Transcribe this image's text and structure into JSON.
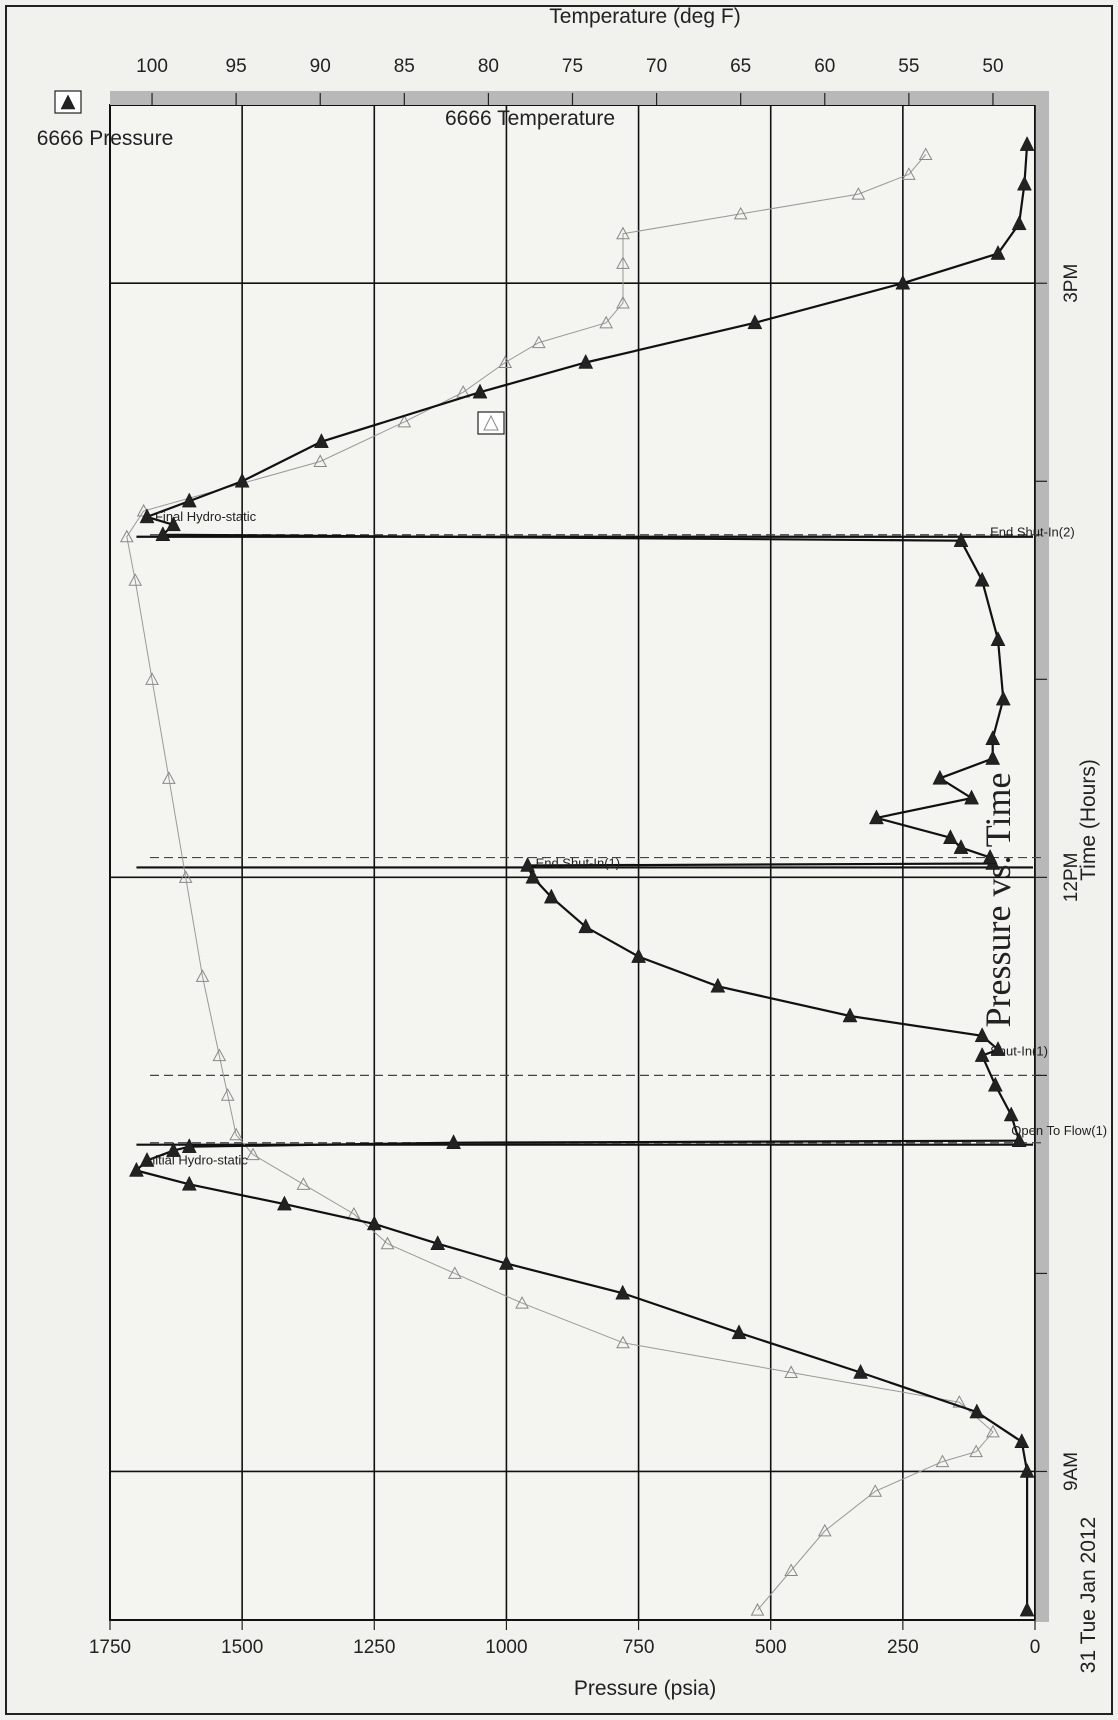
{
  "chart_data": {
    "type": "line",
    "title": "Pressure vs. Time",
    "xlabel": "Time (Hours)",
    "ylabel": "Pressure (psia)",
    "y2label": "Temperature (deg F)",
    "date_label": "31 Tue Jan 2012",
    "x_ticks": [
      "9AM",
      "12PM",
      "3PM"
    ],
    "x_tick_hours": [
      9,
      12,
      15
    ],
    "xlim": [
      8.25,
      15.9
    ],
    "ylim": [
      0,
      1750
    ],
    "y_ticks": [
      0,
      250,
      500,
      750,
      1000,
      1250,
      1500,
      1750
    ],
    "y2lim": [
      47.5,
      102.5
    ],
    "y2_ticks": [
      50,
      55,
      60,
      65,
      70,
      75,
      80,
      85,
      90,
      95,
      100
    ],
    "grid": true,
    "orientation": "rotated 90 degrees counter-clockwise (scanned page)",
    "series": [
      {
        "name": "6666 Pressure",
        "axis": "left",
        "marker": "filled-triangle",
        "points": [
          [
            8.3,
            15
          ],
          [
            9.0,
            15
          ],
          [
            9.15,
            25
          ],
          [
            9.3,
            110
          ],
          [
            9.5,
            330
          ],
          [
            9.7,
            560
          ],
          [
            9.9,
            780
          ],
          [
            10.05,
            1000
          ],
          [
            10.15,
            1130
          ],
          [
            10.25,
            1250
          ],
          [
            10.35,
            1420
          ],
          [
            10.45,
            1600
          ],
          [
            10.52,
            1700
          ],
          [
            10.57,
            1680
          ],
          [
            10.62,
            1630
          ],
          [
            10.64,
            1600
          ],
          [
            10.66,
            1100
          ],
          [
            10.67,
            30
          ],
          [
            10.8,
            45
          ],
          [
            10.95,
            75
          ],
          [
            11.1,
            100
          ],
          [
            11.13,
            70
          ],
          [
            11.2,
            100
          ],
          [
            11.3,
            350
          ],
          [
            11.45,
            600
          ],
          [
            11.6,
            750
          ],
          [
            11.75,
            850
          ],
          [
            11.9,
            915
          ],
          [
            12.0,
            950
          ],
          [
            12.06,
            960
          ],
          [
            12.07,
            80
          ],
          [
            12.1,
            85
          ],
          [
            12.15,
            140
          ],
          [
            12.2,
            160
          ],
          [
            12.3,
            300
          ],
          [
            12.4,
            120
          ],
          [
            12.5,
            180
          ],
          [
            12.6,
            80
          ],
          [
            12.7,
            80
          ],
          [
            12.9,
            60
          ],
          [
            13.2,
            70
          ],
          [
            13.5,
            100
          ],
          [
            13.7,
            140
          ],
          [
            13.73,
            1650
          ],
          [
            13.78,
            1630
          ],
          [
            13.82,
            1680
          ],
          [
            13.9,
            1600
          ],
          [
            14.0,
            1500
          ],
          [
            14.2,
            1350
          ],
          [
            14.45,
            1050
          ],
          [
            14.6,
            850
          ],
          [
            14.8,
            530
          ],
          [
            15.0,
            250
          ],
          [
            15.15,
            70
          ],
          [
            15.3,
            30
          ],
          [
            15.5,
            20
          ],
          [
            15.7,
            15
          ]
        ]
      },
      {
        "name": "6666 Temperature",
        "axis": "right",
        "marker": "open-triangle",
        "points": [
          [
            8.3,
            64
          ],
          [
            8.5,
            62
          ],
          [
            8.7,
            60
          ],
          [
            8.9,
            57
          ],
          [
            9.05,
            53
          ],
          [
            9.1,
            51
          ],
          [
            9.2,
            50
          ],
          [
            9.35,
            52
          ],
          [
            9.5,
            62
          ],
          [
            9.65,
            72
          ],
          [
            9.85,
            78
          ],
          [
            10.0,
            82
          ],
          [
            10.15,
            86
          ],
          [
            10.3,
            88
          ],
          [
            10.45,
            91
          ],
          [
            10.6,
            94
          ],
          [
            10.7,
            95
          ],
          [
            10.9,
            95.5
          ],
          [
            11.1,
            96
          ],
          [
            11.5,
            97
          ],
          [
            12.0,
            98
          ],
          [
            12.5,
            99
          ],
          [
            13.0,
            100
          ],
          [
            13.5,
            101
          ],
          [
            13.72,
            101.5
          ],
          [
            13.85,
            100.5
          ],
          [
            14.1,
            90
          ],
          [
            14.3,
            85
          ],
          [
            14.45,
            81.5
          ],
          [
            14.6,
            79
          ],
          [
            14.7,
            77
          ],
          [
            14.8,
            73
          ],
          [
            14.9,
            72
          ],
          [
            15.1,
            72
          ],
          [
            15.25,
            72
          ],
          [
            15.35,
            65
          ],
          [
            15.45,
            58
          ],
          [
            15.55,
            55
          ],
          [
            15.65,
            54
          ]
        ]
      }
    ],
    "annotations": [
      {
        "text": "Initial Hydro-static",
        "x": 10.55,
        "y": 1700
      },
      {
        "text": "Open To Flow(1)",
        "x": 10.7,
        "y": 60
      },
      {
        "text": "Shut-In(1)",
        "x": 11.1,
        "y": 100
      },
      {
        "text": "End Shut-In(1)",
        "x": 12.05,
        "y": 960
      },
      {
        "text": "End Shut-In(2)",
        "x": 13.72,
        "y": 100
      },
      {
        "text": "Final Hydro-static",
        "x": 13.8,
        "y": 1680
      }
    ],
    "event_lines_hours": [
      10.65,
      12.05,
      13.72
    ],
    "dashed_lines_hours": [
      10.66,
      11.0,
      12.1,
      13.73
    ]
  }
}
